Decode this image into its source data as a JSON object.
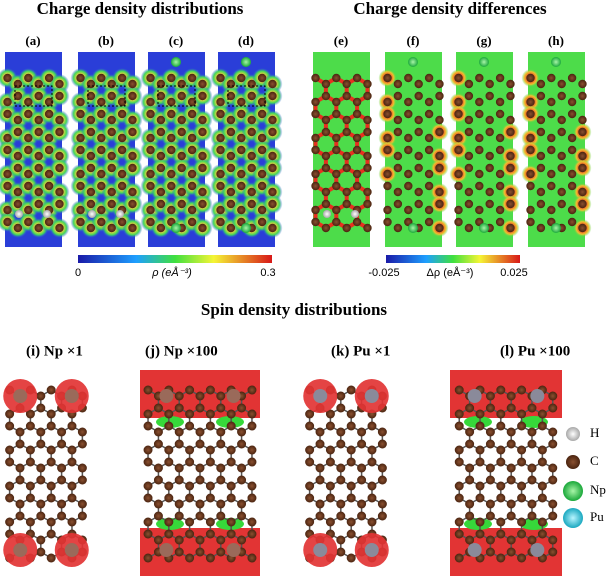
{
  "figure": {
    "top_titles": [
      "Charge density distributions",
      "Charge density differences"
    ],
    "top_panels": [
      "(a)",
      "(b)",
      "(c)",
      "(d)",
      "(e)",
      "(f)",
      "(g)",
      "(h)"
    ],
    "colorbars": [
      {
        "min_label": "0",
        "quantity": "ρ (eÅ⁻³)",
        "max_label": "0.3"
      },
      {
        "min_label": "-0.025",
        "quantity": "Δρ (eÅ⁻³)",
        "max_label": "0.025"
      }
    ],
    "bottom_title": "Spin density distributions",
    "bottom_panels": [
      "(i) Np ×1",
      "(j) Np ×100",
      "(k) Pu ×1",
      "(l) Pu ×100"
    ],
    "legend": [
      "H",
      "C",
      "Np",
      "Pu"
    ]
  }
}
